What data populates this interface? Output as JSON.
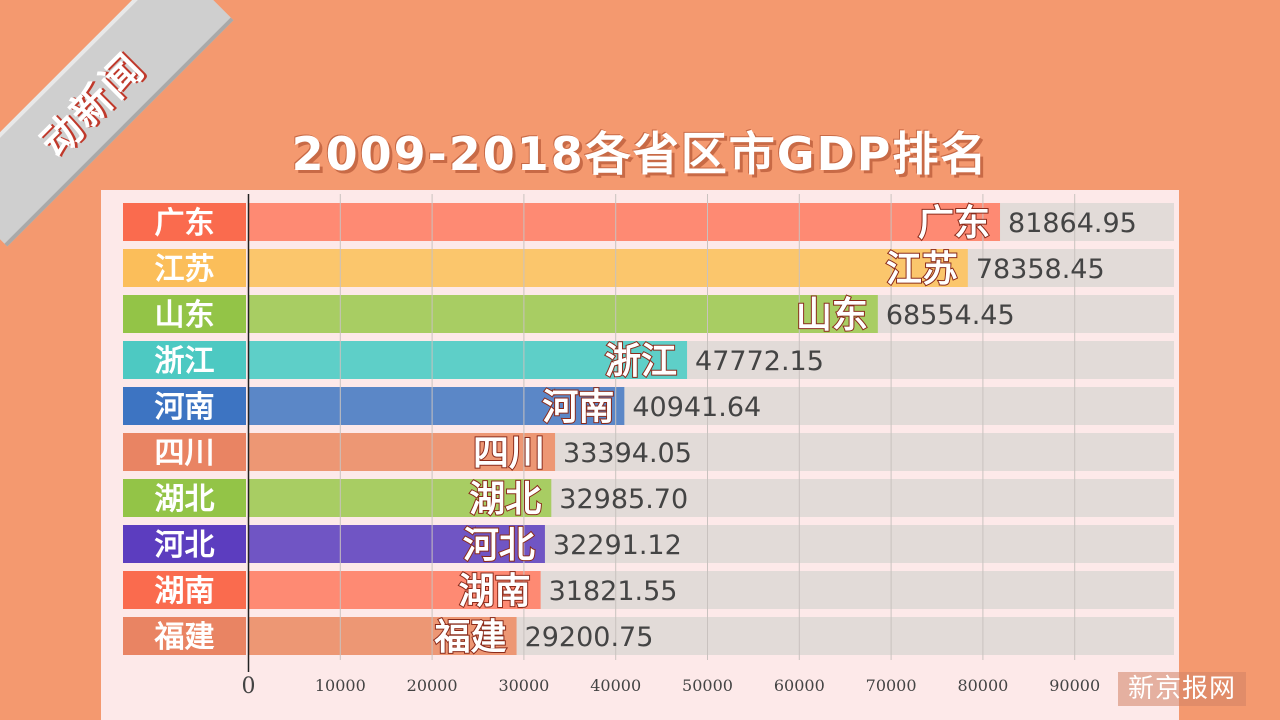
{
  "title": "2009-2018各省区市GDP排名",
  "logo": {
    "text": "动新闻"
  },
  "watermark": "新京报网",
  "colors": {
    "background": "#f4996f",
    "panel": "#fde9e9",
    "track": "#e2dbd8"
  },
  "chart_data": {
    "type": "bar",
    "orientation": "horizontal",
    "title": "2009-2018各省区市GDP排名",
    "categories": [
      "广东",
      "江苏",
      "山东",
      "浙江",
      "河南",
      "四川",
      "湖北",
      "河北",
      "湖南",
      "福建"
    ],
    "values": [
      81864.95,
      78358.45,
      68554.45,
      47772.15,
      40941.64,
      33394.05,
      32985.7,
      32291.12,
      31821.55,
      29200.75
    ],
    "value_labels": [
      "81864.95",
      "78358.45",
      "68554.45",
      "47772.15",
      "40941.64",
      "33394.05",
      "32985.70",
      "32291.12",
      "31821.55",
      "29200.75"
    ],
    "bar_colors": [
      "#fe8a73",
      "#fbc66c",
      "#a8cd63",
      "#5ecfc8",
      "#5b87c7",
      "#ed9774",
      "#a8cd63",
      "#7055c4",
      "#fe8a73",
      "#ed9774"
    ],
    "label_colors": [
      "#fa6b4e",
      "#fbbe5a",
      "#93c447",
      "#4dc9c2",
      "#3d74c2",
      "#e98463",
      "#93c447",
      "#5c3dbf",
      "#fa6b4e",
      "#e98463"
    ],
    "xlim": [
      0,
      100000
    ],
    "xticks": [
      0,
      10000,
      20000,
      30000,
      40000,
      50000,
      60000,
      70000,
      80000,
      90000
    ],
    "xtick_labels": [
      "0",
      "10000",
      "20000",
      "30000",
      "40000",
      "50000",
      "60000",
      "70000",
      "80000",
      "90000"
    ],
    "grid": true
  }
}
